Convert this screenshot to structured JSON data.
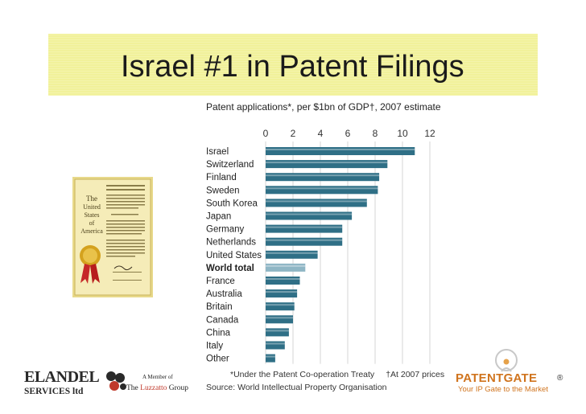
{
  "slide": {
    "title": "Israel #1 in Patent Filings"
  },
  "chart_data": {
    "type": "bar",
    "orientation": "horizontal",
    "title": "Patent applications*, per $1bn of GDP†, 2007 estimate",
    "categories": [
      "Israel",
      "Switzerland",
      "Finland",
      "Sweden",
      "South Korea",
      "Japan",
      "Germany",
      "Netherlands",
      "United States",
      "World total",
      "France",
      "Australia",
      "Britain",
      "Canada",
      "China",
      "Italy",
      "Other"
    ],
    "values": [
      10.9,
      8.9,
      8.3,
      8.2,
      7.4,
      6.3,
      5.6,
      5.6,
      3.8,
      2.9,
      2.5,
      2.3,
      2.1,
      2.0,
      1.7,
      1.4,
      0.7
    ],
    "highlight": "World total",
    "xlim": [
      0,
      12
    ],
    "xticks": [
      0,
      2,
      4,
      6,
      8,
      10,
      12
    ],
    "grid": true,
    "colors": {
      "bar": "#2f6f86",
      "bar_highlight": "#8fb6c5"
    },
    "footnote_1": "*Under the Patent Co-operation Treaty",
    "footnote_2": "†At 2007 prices",
    "source": "Source: World Intellectual Property Organisation"
  },
  "certificate": {
    "icon": "patent-certificate-icon",
    "heading": "The United States of America"
  },
  "branding": {
    "elandel_name": "ELANDEL",
    "elandel_services": "SERVICES ltd",
    "member_of": "A Member of",
    "group_the": "The",
    "group_luzzatto": "Luzzatto",
    "group_name": "Group",
    "patentgate_name": "PATENTGATE",
    "patentgate_reg": "®",
    "patentgate_tagline": "Your IP Gate to the Market",
    "colors": {
      "patentgate": "#d0741e",
      "luzzatto": "#c0392b",
      "title_band": "#f1f19a"
    }
  }
}
